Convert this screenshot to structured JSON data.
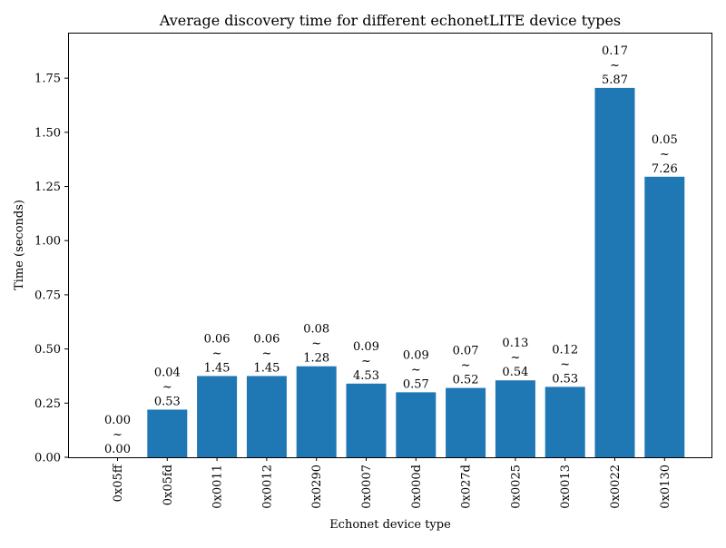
{
  "chart_data": {
    "type": "bar",
    "title": "Average discovery time for different echonetLITE device types",
    "xlabel": "Echonet device type",
    "ylabel": "Time (seconds)",
    "ylim": [
      0,
      1.96
    ],
    "yticks": [
      0.0,
      0.25,
      0.5,
      0.75,
      1.0,
      1.25,
      1.5,
      1.75
    ],
    "ytick_labels": [
      "0.00",
      "0.25",
      "0.50",
      "0.75",
      "1.00",
      "1.25",
      "1.50",
      "1.75"
    ],
    "grid": false,
    "bar_color": "#1f77b4",
    "categories": [
      "0x05ff",
      "0x05fd",
      "0x0011",
      "0x0012",
      "0x0290",
      "0x0007",
      "0x000d",
      "0x027d",
      "0x0025",
      "0x0013",
      "0x0022",
      "0x0130"
    ],
    "values": [
      0.0,
      0.22,
      0.375,
      0.375,
      0.42,
      0.34,
      0.3,
      0.32,
      0.355,
      0.325,
      1.705,
      1.295
    ],
    "annotations": [
      [
        "0.00",
        "~",
        "0.00"
      ],
      [
        "0.04",
        "~",
        "0.53"
      ],
      [
        "0.06",
        "~",
        "1.45"
      ],
      [
        "0.06",
        "~",
        "1.45"
      ],
      [
        "0.08",
        "~",
        "1.28"
      ],
      [
        "0.09",
        "~",
        "4.53"
      ],
      [
        "0.09",
        "~",
        "0.57"
      ],
      [
        "0.07",
        "~",
        "0.52"
      ],
      [
        "0.13",
        "~",
        "0.54"
      ],
      [
        "0.12",
        "~",
        "0.53"
      ],
      [
        "0.17",
        "~",
        "5.87"
      ],
      [
        "0.05",
        "~",
        "7.26"
      ]
    ]
  }
}
